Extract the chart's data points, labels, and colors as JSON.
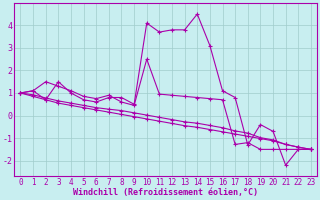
{
  "xlabel": "Windchill (Refroidissement éolien,°C)",
  "background_color": "#c8eef0",
  "line_color": "#aa00aa",
  "xlim": [
    -0.5,
    23.5
  ],
  "ylim": [
    -2.7,
    5.0
  ],
  "yticks": [
    -2,
    -1,
    0,
    1,
    2,
    3,
    4
  ],
  "xticks": [
    0,
    1,
    2,
    3,
    4,
    5,
    6,
    7,
    8,
    9,
    10,
    11,
    12,
    13,
    14,
    15,
    16,
    17,
    18,
    19,
    20,
    21,
    22,
    23
  ],
  "series": {
    "main": {
      "x": [
        0,
        1,
        2,
        3,
        4,
        5,
        6,
        7,
        8,
        9,
        10,
        11,
        12,
        13,
        14,
        15,
        16,
        17,
        18,
        19,
        20,
        21,
        22,
        23
      ],
      "y": [
        1.0,
        1.1,
        0.7,
        1.5,
        1.0,
        0.7,
        0.6,
        0.8,
        0.8,
        0.5,
        4.1,
        3.7,
        3.8,
        3.8,
        4.5,
        3.1,
        1.1,
        0.8,
        -1.3,
        -0.4,
        -0.7,
        -2.2,
        -1.5,
        -1.5
      ]
    },
    "slope1": {
      "x": [
        0,
        1,
        2,
        3,
        4,
        5,
        6,
        7,
        8,
        9,
        10,
        11,
        12,
        13,
        14,
        15,
        16,
        17,
        18,
        19,
        20,
        21,
        22,
        23
      ],
      "y": [
        1.0,
        0.85,
        0.7,
        0.55,
        0.45,
        0.35,
        0.25,
        0.15,
        0.05,
        -0.05,
        -0.15,
        -0.25,
        -0.35,
        -0.45,
        -0.52,
        -0.62,
        -0.72,
        -0.82,
        -0.92,
        -1.02,
        -1.12,
        -1.28,
        -1.4,
        -1.5
      ]
    },
    "slope2": {
      "x": [
        0,
        1,
        2,
        3,
        4,
        5,
        6,
        7,
        8,
        9,
        10,
        11,
        12,
        13,
        14,
        15,
        16,
        17,
        18,
        19,
        20,
        21,
        22,
        23
      ],
      "y": [
        1.0,
        0.92,
        0.78,
        0.65,
        0.55,
        0.45,
        0.35,
        0.28,
        0.22,
        0.12,
        0.02,
        -0.08,
        -0.18,
        -0.28,
        -0.34,
        -0.44,
        -0.54,
        -0.68,
        -0.78,
        -0.98,
        -1.08,
        -1.28,
        -1.4,
        -1.5
      ]
    },
    "secondary": {
      "x": [
        0,
        1,
        2,
        3,
        4,
        5,
        6,
        7,
        8,
        9,
        10,
        11,
        12,
        13,
        14,
        15,
        16,
        17,
        18,
        19,
        20,
        21,
        22,
        23
      ],
      "y": [
        1.0,
        1.1,
        1.5,
        1.3,
        1.1,
        0.85,
        0.75,
        0.9,
        0.6,
        0.45,
        2.5,
        0.95,
        0.9,
        0.85,
        0.8,
        0.75,
        0.7,
        -1.28,
        -1.2,
        -1.5,
        -1.5,
        -1.5,
        -1.5,
        -1.5
      ]
    }
  },
  "marker_size": 3,
  "linewidth": 0.8,
  "tick_fontsize": 5.5,
  "xlabel_fontsize": 6,
  "grid_color": "#a0cccc",
  "grid_linewidth": 0.5
}
